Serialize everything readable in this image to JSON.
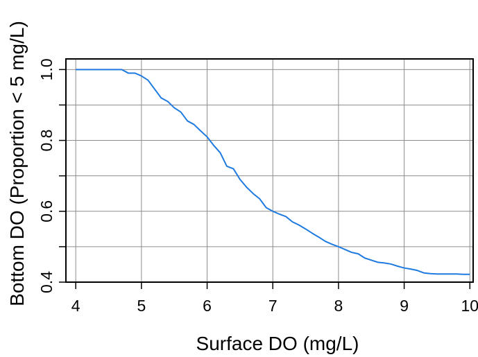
{
  "chart_data": {
    "type": "line",
    "title": "",
    "xlabel": "Surface DO (mg/L)",
    "ylabel": "Bottom DO (Proportion < 5 mg/L)",
    "xlim": [
      3.85,
      10.05
    ],
    "ylim": [
      0.4,
      1.03
    ],
    "xticks": [
      4,
      5,
      6,
      7,
      8,
      9,
      10
    ],
    "xtick_labels": [
      "4",
      "5",
      "6",
      "7",
      "8",
      "9",
      "10"
    ],
    "yticks": [
      0.4,
      0.6,
      0.8,
      1.0
    ],
    "ytick_labels": [
      "0.4",
      "0.6",
      "0.8",
      "1.0"
    ],
    "ygrid": [
      0.4,
      0.5,
      0.6,
      0.7,
      0.8,
      0.9,
      1.0
    ],
    "grid": true,
    "line_color": "#1f7ae0",
    "series": [
      {
        "x": [
          4.0,
          4.1,
          4.2,
          4.3,
          4.4,
          4.5,
          4.6,
          4.7,
          4.8,
          4.9,
          5.0,
          5.1,
          5.2,
          5.3,
          5.4,
          5.5,
          5.6,
          5.7,
          5.8,
          5.9,
          6.0,
          6.1,
          6.2,
          6.3,
          6.4,
          6.5,
          6.6,
          6.7,
          6.8,
          6.9,
          7.0,
          7.1,
          7.2,
          7.3,
          7.4,
          7.5,
          7.6,
          7.7,
          7.8,
          7.9,
          8.0,
          8.1,
          8.2,
          8.3,
          8.4,
          8.5,
          8.6,
          8.7,
          8.8,
          8.9,
          9.0,
          9.1,
          9.2,
          9.3,
          9.4,
          9.5,
          9.6,
          9.7,
          9.8,
          9.9,
          10.0
        ],
        "values": [
          1.0,
          1.0,
          1.0,
          1.0,
          1.0,
          1.0,
          1.0,
          1.0,
          0.99,
          0.99,
          0.982,
          0.97,
          0.945,
          0.92,
          0.91,
          0.892,
          0.88,
          0.855,
          0.845,
          0.827,
          0.81,
          0.786,
          0.765,
          0.727,
          0.72,
          0.69,
          0.668,
          0.65,
          0.635,
          0.61,
          0.6,
          0.592,
          0.585,
          0.57,
          0.561,
          0.55,
          0.538,
          0.527,
          0.515,
          0.507,
          0.5,
          0.492,
          0.484,
          0.48,
          0.468,
          0.462,
          0.456,
          0.454,
          0.451,
          0.445,
          0.44,
          0.437,
          0.433,
          0.426,
          0.424,
          0.423,
          0.423,
          0.423,
          0.423,
          0.422,
          0.422
        ]
      }
    ]
  }
}
